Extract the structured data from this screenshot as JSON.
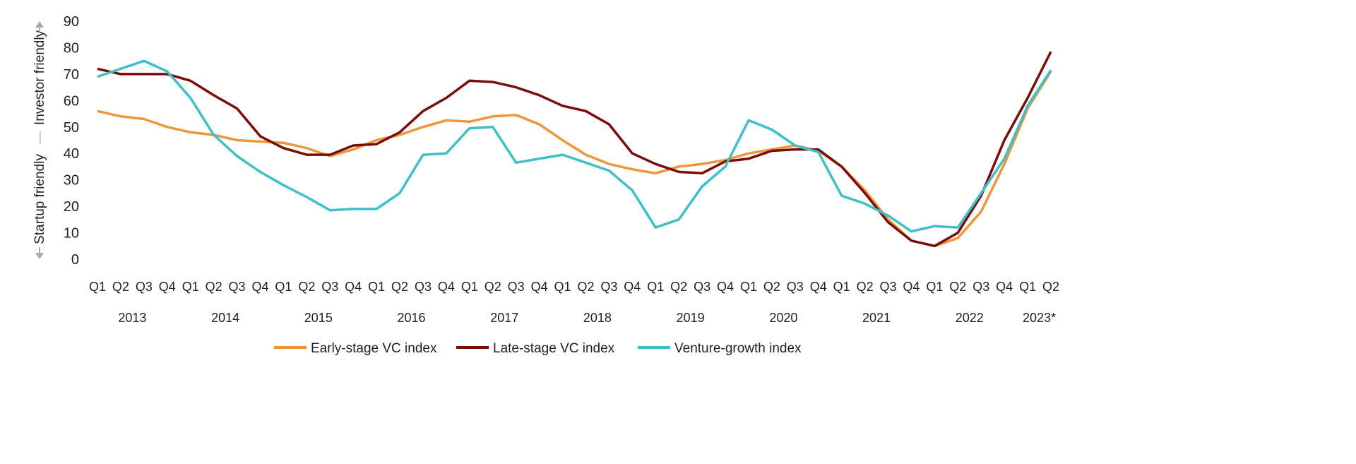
{
  "chart_data": {
    "type": "line",
    "title": "",
    "ylabel": {
      "bottom": "Startup friendly",
      "separator": "—",
      "top": "Investor friendly"
    },
    "xlabel": "",
    "ylim": [
      0,
      90
    ],
    "yticks": [
      0,
      10,
      20,
      30,
      40,
      50,
      60,
      70,
      80,
      90
    ],
    "grid": false,
    "legend_position": "bottom",
    "quarters": [
      "Q1",
      "Q2",
      "Q3",
      "Q4",
      "Q1",
      "Q2",
      "Q3",
      "Q4",
      "Q1",
      "Q2",
      "Q3",
      "Q4",
      "Q1",
      "Q2",
      "Q3",
      "Q4",
      "Q1",
      "Q2",
      "Q3",
      "Q4",
      "Q1",
      "Q2",
      "Q3",
      "Q4",
      "Q1",
      "Q2",
      "Q3",
      "Q4",
      "Q1",
      "Q2",
      "Q3",
      "Q4",
      "Q1",
      "Q2",
      "Q3",
      "Q4",
      "Q1",
      "Q2",
      "Q3",
      "Q4",
      "Q1",
      "Q2"
    ],
    "years": [
      {
        "label": "2013",
        "first_quarter_index": 0,
        "quarters": 4
      },
      {
        "label": "2014",
        "first_quarter_index": 4,
        "quarters": 4
      },
      {
        "label": "2015",
        "first_quarter_index": 8,
        "quarters": 4
      },
      {
        "label": "2016",
        "first_quarter_index": 12,
        "quarters": 4
      },
      {
        "label": "2017",
        "first_quarter_index": 16,
        "quarters": 4
      },
      {
        "label": "2018",
        "first_quarter_index": 20,
        "quarters": 4
      },
      {
        "label": "2019",
        "first_quarter_index": 24,
        "quarters": 4
      },
      {
        "label": "2020",
        "first_quarter_index": 28,
        "quarters": 4
      },
      {
        "label": "2021",
        "first_quarter_index": 32,
        "quarters": 4
      },
      {
        "label": "2022",
        "first_quarter_index": 36,
        "quarters": 4
      },
      {
        "label": "2023*",
        "first_quarter_index": 40,
        "quarters": 2
      }
    ],
    "series": [
      {
        "name": "Early-stage VC index",
        "color": "#f0963a",
        "values": [
          56,
          54,
          53,
          50,
          48,
          47,
          45,
          44.5,
          44,
          42,
          39,
          41.5,
          45,
          47,
          50,
          52.5,
          52,
          54,
          54.5,
          51,
          45,
          39.5,
          36,
          34,
          32.5,
          35,
          36,
          37.5,
          40,
          41.5,
          43,
          41,
          35,
          26,
          15,
          7,
          5,
          8,
          18,
          36,
          57,
          71
        ]
      },
      {
        "name": "Late-stage VC index",
        "color": "#7a0c0c",
        "values": [
          72,
          70,
          70,
          70,
          67.5,
          62,
          57,
          46.5,
          42,
          39.5,
          39.5,
          43,
          43.5,
          48,
          56,
          61,
          67.5,
          67,
          65,
          62,
          58,
          56,
          51,
          40,
          36,
          33,
          32.5,
          37,
          38,
          41,
          41.5,
          41.5,
          35,
          25,
          14,
          7,
          5,
          10,
          24,
          45,
          61,
          78.5
        ]
      },
      {
        "name": "Venture-growth index",
        "color": "#3fbfc6",
        "values": [
          69,
          72,
          75,
          71,
          61,
          47,
          39,
          33,
          28,
          23.5,
          18.5,
          19,
          19,
          25,
          39.5,
          40,
          49.5,
          50,
          36.5,
          38,
          39.5,
          36.5,
          33.5,
          26,
          12,
          15,
          27.5,
          35,
          52.5,
          49,
          43,
          40.5,
          24,
          21,
          16.5,
          10.5,
          12.5,
          12,
          25,
          38,
          58,
          71.5
        ]
      }
    ]
  }
}
